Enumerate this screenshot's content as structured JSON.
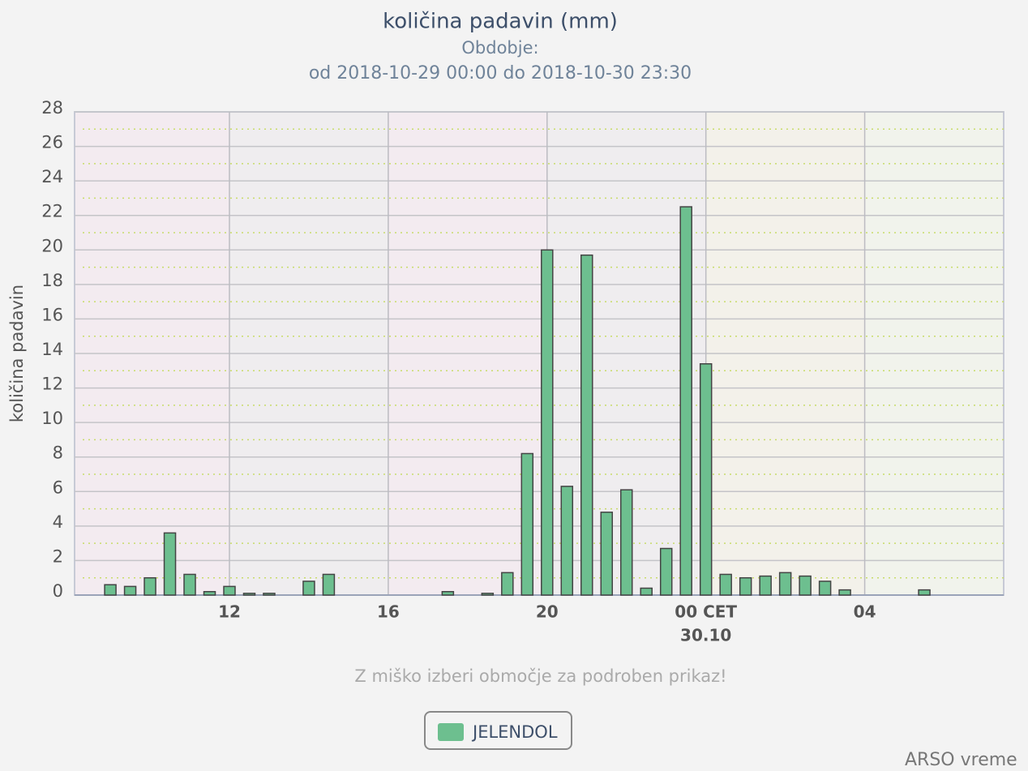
{
  "chart_data": {
    "type": "bar",
    "title": "količina padavin (mm)",
    "subtitle": [
      "Obdobje:",
      "od 2018-10-29 00:00 do 2018-10-30 23:30"
    ],
    "y_label": "količina padavin",
    "x": [
      9,
      9.5,
      10,
      10.5,
      11,
      11.5,
      12,
      12.5,
      13,
      14,
      14.5,
      17.5,
      18.5,
      19,
      19.5,
      20,
      20.5,
      21,
      21.5,
      22,
      22.5,
      23,
      23.5,
      24,
      24.5,
      25,
      25.5,
      26,
      26.5,
      27,
      27.5,
      29.5
    ],
    "series": [
      {
        "name": "JELENDOL",
        "color": "#6dbf8f",
        "values": [
          0.6,
          0.5,
          1.0,
          3.6,
          1.2,
          0.2,
          0.5,
          0.1,
          0.1,
          0.8,
          1.2,
          0.2,
          0.1,
          1.3,
          8.2,
          20.0,
          6.3,
          19.7,
          4.8,
          6.1,
          0.4,
          2.7,
          22.5,
          13.4,
          1.2,
          1.0,
          1.1,
          1.3,
          1.1,
          0.8,
          0.3,
          0.3
        ]
      }
    ],
    "xlim": [
      8.1,
      31.5
    ],
    "xticks": [
      12,
      16,
      20,
      {
        "value": 24,
        "label": "00 CET",
        "sublabel": "30.10"
      },
      {
        "value": 28,
        "label": "04"
      }
    ],
    "ylim": [
      0,
      28
    ],
    "yticks": [
      0,
      2,
      4,
      6,
      8,
      10,
      12,
      14,
      16,
      18,
      20,
      22,
      24,
      26,
      28
    ],
    "yminorticks": [
      1,
      3,
      5,
      7,
      9,
      11,
      13,
      15,
      17,
      19,
      21,
      23,
      25,
      27
    ],
    "grid": true,
    "hint": "Z miško izberi območje za podroben prikaz!",
    "credit": "ARSO vreme"
  }
}
